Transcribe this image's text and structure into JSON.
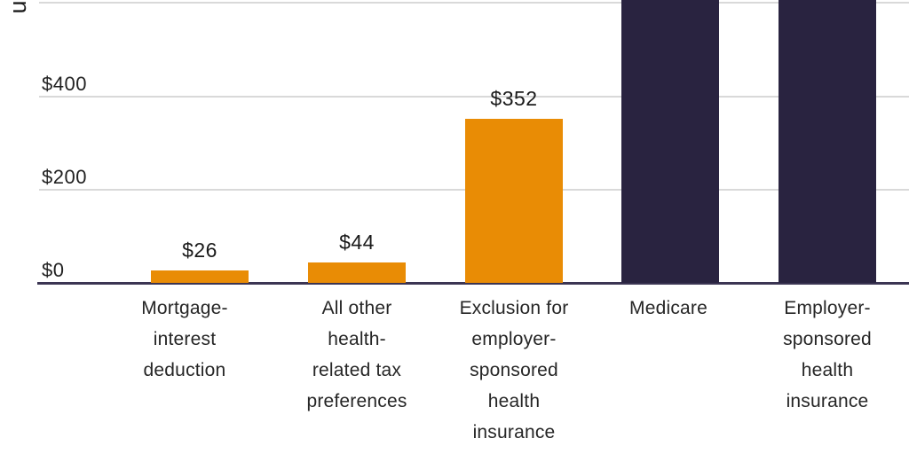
{
  "chart_data": {
    "type": "bar",
    "title": "",
    "xlabel": "",
    "ylabel_visible_fragment": "u",
    "categories": [
      "Mortgage-\ninterest\ndeduction",
      "All other\nhealth-\nrelated tax\npreferences",
      "Exclusion for\nemployer-\nsponsored\nhealth\ninsurance",
      "Medicare",
      "Employer-\nsponsored\nhealth\ninsurance"
    ],
    "values": [
      26,
      44,
      352,
      null,
      null
    ],
    "value_labels": [
      "$26",
      "$44",
      "$352",
      null,
      null
    ],
    "clipped_above_top": [
      false,
      false,
      false,
      true,
      true
    ],
    "bar_colors": [
      "#e98c05",
      "#e98c05",
      "#e98c05",
      "#292340",
      "#292340"
    ],
    "y_ticks": [
      {
        "value": 0,
        "label": "$0"
      },
      {
        "value": 200,
        "label": "$200"
      },
      {
        "value": 400,
        "label": "$400"
      },
      {
        "value": 600,
        "label": null
      }
    ],
    "ylim_visible": [
      0,
      605
    ],
    "grid": "horizontal",
    "legend": "none"
  },
  "colors": {
    "bar_orange": "#e98c05",
    "bar_navy": "#292340",
    "gridline": "#d9d9d9",
    "axis_line": "#3b3553",
    "text": "#212121",
    "background": "#ffffff"
  }
}
